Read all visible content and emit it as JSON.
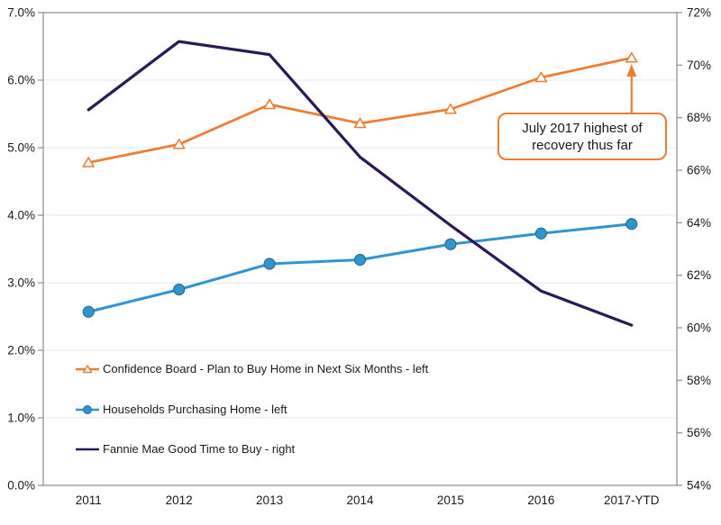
{
  "chart_data": {
    "type": "line",
    "title": "",
    "categories": [
      "2011",
      "2012",
      "2013",
      "2014",
      "2015",
      "2016",
      "2017-YTD"
    ],
    "series": [
      {
        "name": "Confidence Board - Plan to Buy Home in Next Six Months - left",
        "axis": "left",
        "marker": "triangle-open",
        "color": "#ED7D31",
        "marker_fill": "#ffffff",
        "values": [
          4.78,
          5.05,
          5.64,
          5.36,
          5.57,
          6.04,
          6.33
        ]
      },
      {
        "name": "Households Purchasing Home - left",
        "axis": "left",
        "marker": "circle",
        "color": "#2E95CE",
        "marker_stroke": "#2C6E93",
        "values": [
          2.57,
          2.9,
          3.28,
          3.34,
          3.57,
          3.73,
          3.87
        ]
      },
      {
        "name": "Fannie Mae Good Time to Buy - right",
        "axis": "right",
        "marker": "none",
        "color": "#2C1A57",
        "values": [
          68.3,
          70.9,
          70.4,
          66.5,
          63.9,
          61.4,
          60.1
        ]
      }
    ],
    "left_axis": {
      "min": 0,
      "max": 7,
      "step": 1,
      "tick_labels": [
        "0.0%",
        "1.0%",
        "2.0%",
        "3.0%",
        "4.0%",
        "5.0%",
        "6.0%",
        "7.0%"
      ]
    },
    "right_axis": {
      "min": 54,
      "max": 72,
      "step": 2,
      "tick_labels": [
        "54%",
        "56%",
        "58%",
        "60%",
        "62%",
        "64%",
        "66%",
        "68%",
        "70%",
        "72%"
      ]
    },
    "grid": true,
    "grid_color": "#DEEAF6",
    "border_color": "#8C8C8C",
    "legend_position": "inside-bottom-left",
    "annotation": {
      "line1": "July 2017 highest of",
      "line2": "recovery thus far",
      "arrow_color": "#ED7D31",
      "points_to": "2017-YTD Confidence Board value"
    }
  }
}
